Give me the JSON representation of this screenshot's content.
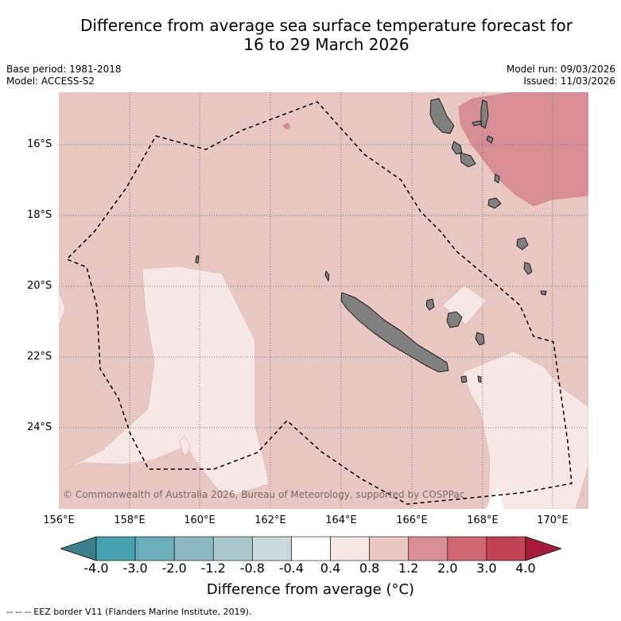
{
  "title_line1": "Difference from average sea surface temperature forecast for",
  "title_line2": "16 to 29 March 2026",
  "base_period": "Base period: 1981-2018",
  "model": "Model: ACCESS-S2",
  "model_run": "Model run: 09/03/2026",
  "issued": "Issued: 11/03/2026",
  "lat_labels": [
    "16°S",
    "18°S",
    "20°S",
    "22°S",
    "24°S"
  ],
  "lon_labels": [
    "156°E",
    "158°E",
    "160°E",
    "162°E",
    "164°E",
    "166°E",
    "168°E",
    "170°E"
  ],
  "copyright": "© Commonwealth of Australia 2026, Bureau of Meteorology, supported by COSPPac",
  "colorbar": {
    "title": "Difference from average (°C)",
    "ticks": [
      "-4.0",
      "-3.0",
      "-2.0",
      "-1.2",
      "-0.8",
      "-0.4",
      "0.4",
      "0.8",
      "1.2",
      "2.0",
      "3.0",
      "4.0"
    ],
    "colors": [
      "#3b7f8c",
      "#45a0b0",
      "#6aadbb",
      "#8cb8c3",
      "#a9c8cc",
      "#cbd8da",
      "#ffffff",
      "#f5e8e6",
      "#e9c7c2",
      "#d88e96",
      "#cf6772",
      "#c04253",
      "#a51b38"
    ]
  },
  "eez_note": "--  --  -- EEZ border V11 (Flanders Marine Institute, 2019).",
  "map_colors": {
    "light": "#f5e8e6",
    "medium": "#e9c7c2",
    "dark": "#d88e96",
    "land": "#808080"
  }
}
